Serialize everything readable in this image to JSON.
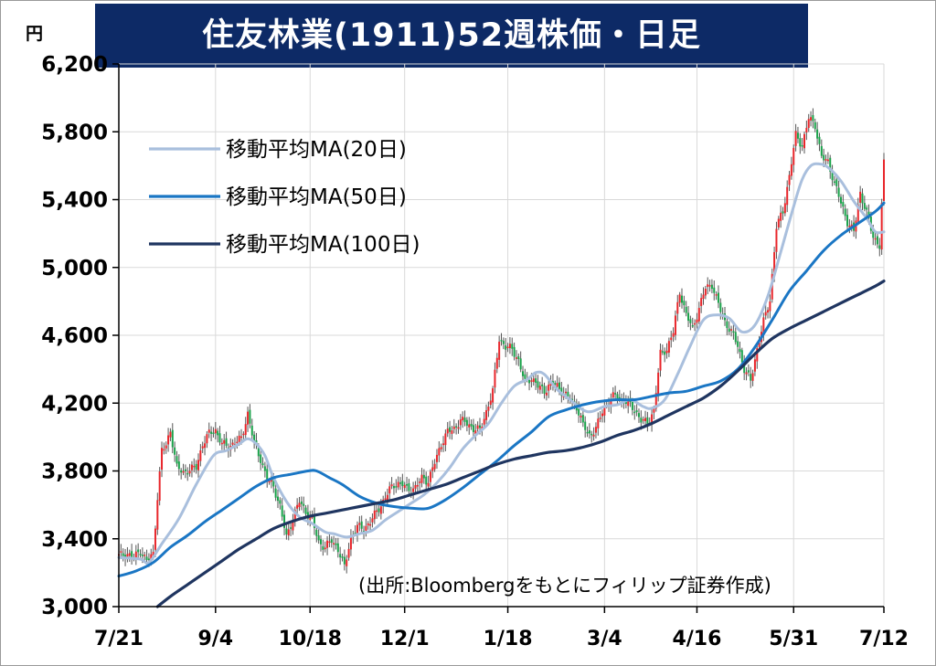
{
  "title": "住友林業(1911)52週株価・日足",
  "unit": "円",
  "source": "(出所:Bloombergをもとにフィリップ証券作成)",
  "colors": {
    "title_bg": "#0d2a66",
    "up": "#e8262b",
    "down": "#1aa24a",
    "ma20": "#a9bfdd",
    "ma50": "#1a76c4",
    "ma100": "#1f3560",
    "grid": "#d9d9d9"
  },
  "chart_data": {
    "type": "candlestick",
    "ylim": [
      3000,
      6200
    ],
    "y_ticks": [
      3000,
      3400,
      3800,
      4200,
      4600,
      5000,
      5400,
      5800,
      6200
    ],
    "y_tick_labels": [
      "3,000",
      "3,400",
      "3,800",
      "4,200",
      "4,600",
      "5,000",
      "5,400",
      "5,800",
      "6,200"
    ],
    "x_ticks": [
      {
        "label": "7/21",
        "day": 0
      },
      {
        "label": "9/4",
        "day": 45
      },
      {
        "label": "10/18",
        "day": 89
      },
      {
        "label": "12/1",
        "day": 133
      },
      {
        "label": "1/18",
        "day": 181
      },
      {
        "label": "3/4",
        "day": 226
      },
      {
        "label": "4/16",
        "day": 269
      },
      {
        "label": "5/31",
        "day": 314
      },
      {
        "label": "7/12",
        "day": 356
      }
    ],
    "x_range_days": [
      0,
      356
    ],
    "legend": {
      "placement": "top-left",
      "entries": [
        "移動平均MA(20日)",
        "移動平均MA(50日)",
        "移動平均MA(100日)"
      ]
    },
    "close_path": [
      [
        0,
        3300
      ],
      [
        4,
        3310
      ],
      [
        7,
        3290
      ],
      [
        10,
        3330
      ],
      [
        13,
        3270
      ],
      [
        16,
        3310
      ],
      [
        18,
        3650
      ],
      [
        20,
        3920
      ],
      [
        22,
        3950
      ],
      [
        24,
        4040
      ],
      [
        27,
        3820
      ],
      [
        30,
        3790
      ],
      [
        33,
        3810
      ],
      [
        36,
        3820
      ],
      [
        39,
        3960
      ],
      [
        42,
        4020
      ],
      [
        45,
        4040
      ],
      [
        48,
        3960
      ],
      [
        51,
        3940
      ],
      [
        54,
        3970
      ],
      [
        57,
        3990
      ],
      [
        60,
        4140
      ],
      [
        63,
        3960
      ],
      [
        66,
        3870
      ],
      [
        69,
        3750
      ],
      [
        72,
        3710
      ],
      [
        75,
        3590
      ],
      [
        78,
        3410
      ],
      [
        81,
        3520
      ],
      [
        84,
        3620
      ],
      [
        87,
        3560
      ],
      [
        90,
        3510
      ],
      [
        93,
        3380
      ],
      [
        96,
        3350
      ],
      [
        99,
        3390
      ],
      [
        102,
        3340
      ],
      [
        105,
        3230
      ],
      [
        108,
        3410
      ],
      [
        111,
        3470
      ],
      [
        114,
        3460
      ],
      [
        117,
        3500
      ],
      [
        120,
        3560
      ],
      [
        123,
        3620
      ],
      [
        126,
        3690
      ],
      [
        129,
        3730
      ],
      [
        132,
        3720
      ],
      [
        135,
        3690
      ],
      [
        138,
        3700
      ],
      [
        141,
        3760
      ],
      [
        144,
        3740
      ],
      [
        147,
        3850
      ],
      [
        150,
        3960
      ],
      [
        153,
        4030
      ],
      [
        156,
        4050
      ],
      [
        159,
        4100
      ],
      [
        162,
        4080
      ],
      [
        165,
        4050
      ],
      [
        168,
        4040
      ],
      [
        171,
        4150
      ],
      [
        174,
        4270
      ],
      [
        177,
        4580
      ],
      [
        180,
        4530
      ],
      [
        183,
        4520
      ],
      [
        186,
        4450
      ],
      [
        189,
        4320
      ],
      [
        192,
        4350
      ],
      [
        195,
        4300
      ],
      [
        198,
        4270
      ],
      [
        201,
        4320
      ],
      [
        204,
        4300
      ],
      [
        207,
        4260
      ],
      [
        210,
        4220
      ],
      [
        213,
        4180
      ],
      [
        216,
        4070
      ],
      [
        219,
        4010
      ],
      [
        222,
        4050
      ],
      [
        225,
        4150
      ],
      [
        228,
        4210
      ],
      [
        231,
        4250
      ],
      [
        234,
        4220
      ],
      [
        237,
        4200
      ],
      [
        240,
        4160
      ],
      [
        243,
        4100
      ],
      [
        246,
        4080
      ],
      [
        249,
        4160
      ],
      [
        252,
        4490
      ],
      [
        255,
        4520
      ],
      [
        258,
        4620
      ],
      [
        261,
        4860
      ],
      [
        264,
        4720
      ],
      [
        267,
        4640
      ],
      [
        270,
        4760
      ],
      [
        273,
        4880
      ],
      [
        276,
        4900
      ],
      [
        279,
        4780
      ],
      [
        282,
        4680
      ],
      [
        285,
        4620
      ],
      [
        288,
        4540
      ],
      [
        291,
        4400
      ],
      [
        294,
        4330
      ],
      [
        297,
        4520
      ],
      [
        300,
        4680
      ],
      [
        303,
        4810
      ],
      [
        306,
        5240
      ],
      [
        309,
        5330
      ],
      [
        312,
        5540
      ],
      [
        315,
        5780
      ],
      [
        318,
        5720
      ],
      [
        321,
        5880
      ],
      [
        324,
        5840
      ],
      [
        327,
        5650
      ],
      [
        330,
        5620
      ],
      [
        333,
        5500
      ],
      [
        336,
        5380
      ],
      [
        339,
        5270
      ],
      [
        342,
        5210
      ],
      [
        345,
        5440
      ],
      [
        348,
        5320
      ],
      [
        351,
        5180
      ],
      [
        354,
        5130
      ],
      [
        356,
        5610
      ]
    ],
    "moving_averages": [
      {
        "name": "移動平均MA(20日)",
        "points": [
          [
            0,
            3290
          ],
          [
            10,
            3280
          ],
          [
            14,
            3260
          ],
          [
            20,
            3370
          ],
          [
            28,
            3520
          ],
          [
            36,
            3720
          ],
          [
            44,
            3890
          ],
          [
            50,
            3920
          ],
          [
            56,
            3960
          ],
          [
            60,
            3990
          ],
          [
            64,
            3960
          ],
          [
            68,
            3890
          ],
          [
            72,
            3760
          ],
          [
            78,
            3620
          ],
          [
            84,
            3530
          ],
          [
            90,
            3490
          ],
          [
            96,
            3440
          ],
          [
            100,
            3430
          ],
          [
            106,
            3410
          ],
          [
            112,
            3430
          ],
          [
            118,
            3450
          ],
          [
            124,
            3510
          ],
          [
            130,
            3560
          ],
          [
            136,
            3610
          ],
          [
            142,
            3660
          ],
          [
            148,
            3730
          ],
          [
            154,
            3820
          ],
          [
            160,
            3930
          ],
          [
            166,
            4010
          ],
          [
            172,
            4080
          ],
          [
            178,
            4200
          ],
          [
            184,
            4300
          ],
          [
            190,
            4340
          ],
          [
            194,
            4380
          ],
          [
            198,
            4370
          ],
          [
            204,
            4280
          ],
          [
            210,
            4220
          ],
          [
            216,
            4160
          ],
          [
            220,
            4150
          ],
          [
            226,
            4180
          ],
          [
            232,
            4190
          ],
          [
            238,
            4220
          ],
          [
            244,
            4180
          ],
          [
            248,
            4170
          ],
          [
            254,
            4220
          ],
          [
            260,
            4370
          ],
          [
            266,
            4540
          ],
          [
            272,
            4690
          ],
          [
            278,
            4720
          ],
          [
            284,
            4700
          ],
          [
            290,
            4620
          ],
          [
            296,
            4660
          ],
          [
            302,
            4830
          ],
          [
            308,
            5090
          ],
          [
            314,
            5360
          ],
          [
            318,
            5520
          ],
          [
            322,
            5600
          ],
          [
            326,
            5610
          ],
          [
            330,
            5590
          ],
          [
            336,
            5510
          ],
          [
            342,
            5390
          ],
          [
            348,
            5290
          ],
          [
            352,
            5210
          ],
          [
            356,
            5210
          ]
        ]
      },
      {
        "name": "移動平均MA(50日)",
        "points": [
          [
            0,
            3180
          ],
          [
            8,
            3210
          ],
          [
            16,
            3260
          ],
          [
            24,
            3350
          ],
          [
            32,
            3420
          ],
          [
            40,
            3500
          ],
          [
            48,
            3570
          ],
          [
            56,
            3640
          ],
          [
            64,
            3710
          ],
          [
            72,
            3760
          ],
          [
            80,
            3780
          ],
          [
            88,
            3800
          ],
          [
            92,
            3800
          ],
          [
            98,
            3760
          ],
          [
            104,
            3720
          ],
          [
            112,
            3650
          ],
          [
            120,
            3610
          ],
          [
            128,
            3590
          ],
          [
            136,
            3580
          ],
          [
            144,
            3580
          ],
          [
            152,
            3630
          ],
          [
            160,
            3700
          ],
          [
            168,
            3780
          ],
          [
            176,
            3860
          ],
          [
            184,
            3950
          ],
          [
            192,
            4030
          ],
          [
            200,
            4120
          ],
          [
            208,
            4160
          ],
          [
            216,
            4190
          ],
          [
            224,
            4210
          ],
          [
            232,
            4220
          ],
          [
            240,
            4220
          ],
          [
            248,
            4240
          ],
          [
            256,
            4260
          ],
          [
            264,
            4270
          ],
          [
            272,
            4300
          ],
          [
            280,
            4330
          ],
          [
            288,
            4400
          ],
          [
            296,
            4530
          ],
          [
            304,
            4690
          ],
          [
            312,
            4860
          ],
          [
            320,
            4980
          ],
          [
            328,
            5100
          ],
          [
            336,
            5190
          ],
          [
            344,
            5260
          ],
          [
            352,
            5330
          ],
          [
            356,
            5380
          ]
        ]
      },
      {
        "name": "移動平均MA(100日)",
        "points": [
          [
            18,
            3000
          ],
          [
            24,
            3060
          ],
          [
            32,
            3130
          ],
          [
            40,
            3200
          ],
          [
            48,
            3270
          ],
          [
            56,
            3340
          ],
          [
            64,
            3400
          ],
          [
            72,
            3460
          ],
          [
            80,
            3500
          ],
          [
            88,
            3530
          ],
          [
            96,
            3550
          ],
          [
            104,
            3570
          ],
          [
            112,
            3590
          ],
          [
            120,
            3610
          ],
          [
            128,
            3630
          ],
          [
            136,
            3660
          ],
          [
            144,
            3690
          ],
          [
            152,
            3720
          ],
          [
            160,
            3760
          ],
          [
            168,
            3800
          ],
          [
            176,
            3840
          ],
          [
            184,
            3870
          ],
          [
            192,
            3890
          ],
          [
            200,
            3910
          ],
          [
            208,
            3920
          ],
          [
            216,
            3940
          ],
          [
            224,
            3970
          ],
          [
            232,
            4010
          ],
          [
            240,
            4040
          ],
          [
            248,
            4080
          ],
          [
            256,
            4130
          ],
          [
            264,
            4180
          ],
          [
            272,
            4230
          ],
          [
            280,
            4300
          ],
          [
            288,
            4390
          ],
          [
            296,
            4490
          ],
          [
            304,
            4580
          ],
          [
            312,
            4640
          ],
          [
            320,
            4690
          ],
          [
            328,
            4740
          ],
          [
            336,
            4790
          ],
          [
            344,
            4840
          ],
          [
            352,
            4890
          ],
          [
            356,
            4920
          ]
        ]
      }
    ]
  }
}
